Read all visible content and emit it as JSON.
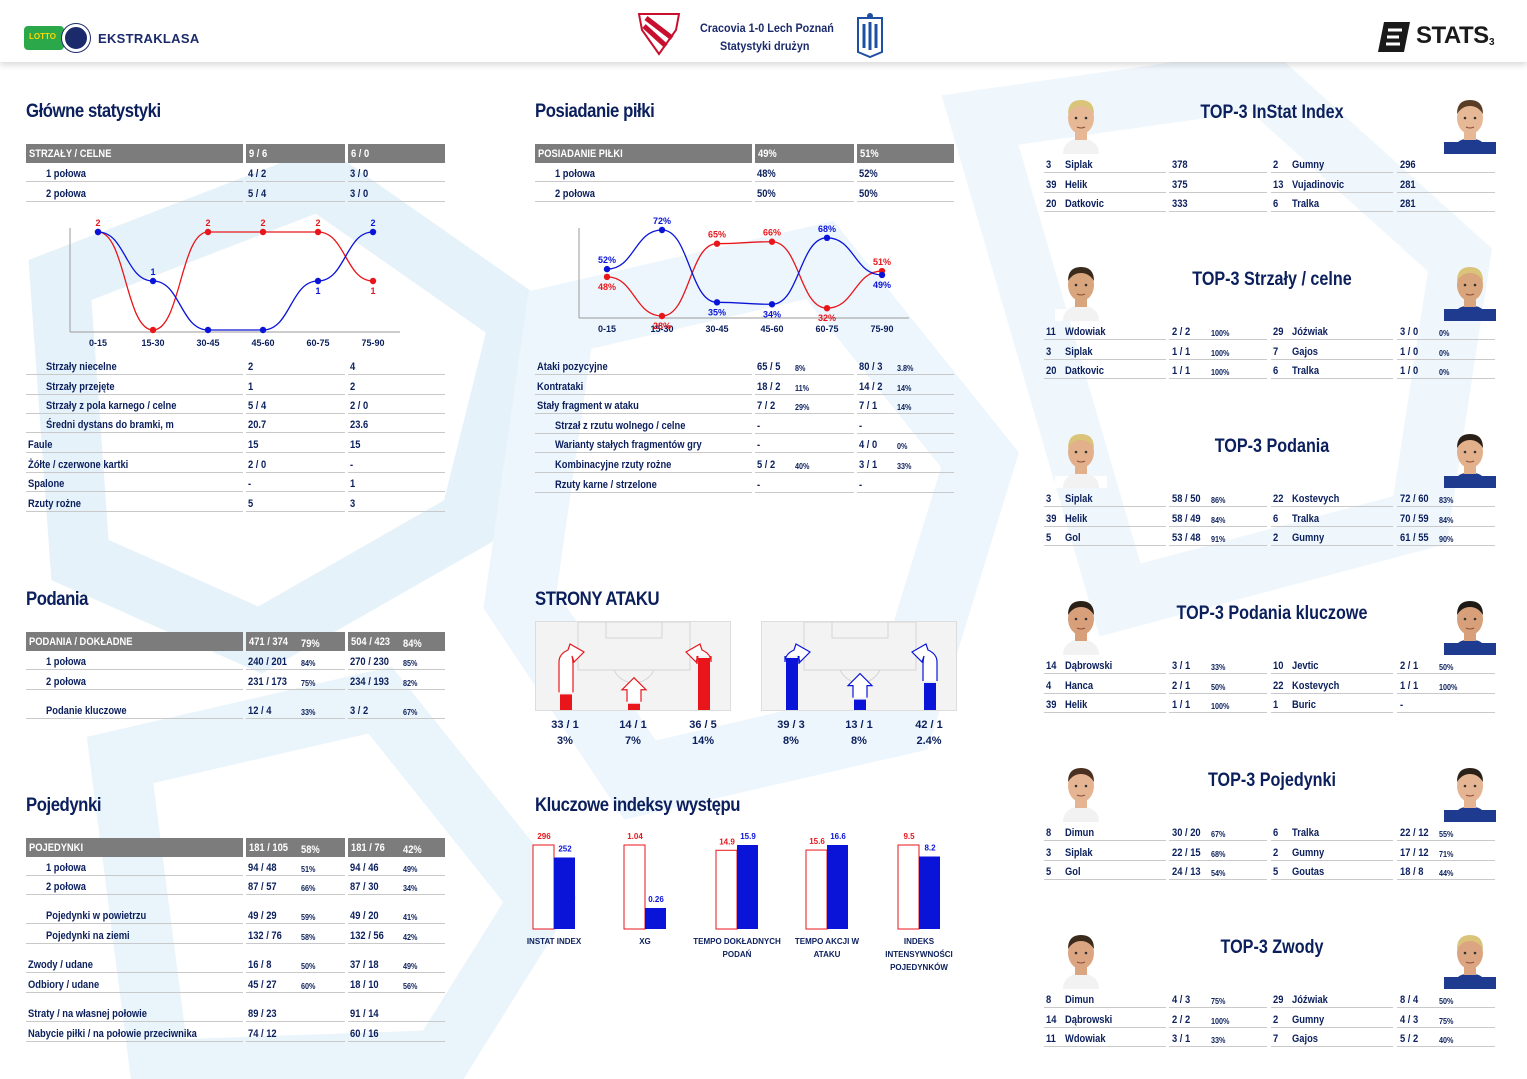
{
  "header": {
    "match": "Cracovia 1-0  Lech Poznań",
    "subtitle": "Statystyki drużyn",
    "league": "EKSTRAKLASA",
    "logo_small": "LOTTO",
    "stats_brand": "STATS",
    "page_number": "3"
  },
  "colors": {
    "home": "#e8161b",
    "away": "#0a14d8",
    "navy": "#0b1f5c",
    "header_gray": "#7c7c7c"
  },
  "main_stats": {
    "title": "Główne statystyki",
    "header": [
      "STRZAŁY / CELNE",
      "9 / 6",
      "6 / 0"
    ],
    "halves": [
      [
        "1 połowa",
        "4 / 2",
        "3 / 0"
      ],
      [
        "2 połowa",
        "5 / 4",
        "3 / 0"
      ]
    ],
    "rows": [
      [
        "Strzały niecelne",
        "2",
        "4"
      ],
      [
        "Strzały przejęte",
        "1",
        "2"
      ],
      [
        "Strzały z pola karnego / celne",
        "5 / 4",
        "2 / 0"
      ],
      [
        "Średni dystans do bramki, m",
        "20.7",
        "23.6"
      ],
      [
        "Faule",
        "15",
        "15"
      ],
      [
        "Żółte / czerwone kartki",
        "2 / 0",
        "-"
      ],
      [
        "Spalone",
        "-",
        "1"
      ],
      [
        "Rzuty rożne",
        "5",
        "3"
      ]
    ]
  },
  "possession": {
    "title": "Posiadanie piłki",
    "header": [
      "POSIADANIE PIŁKI",
      "49%",
      "51%"
    ],
    "halves": [
      [
        "1 połowa",
        "48%",
        "52%"
      ],
      [
        "2 połowa",
        "50%",
        "50%"
      ]
    ],
    "rows": [
      [
        "Ataki pozycyjne",
        "65 / 5",
        "8%",
        "80 / 3",
        "3.8%"
      ],
      [
        "Kontrataki",
        "18 / 2",
        "11%",
        "14 / 2",
        "14%"
      ],
      [
        "Stały fragment w ataku",
        "7 / 2",
        "29%",
        "7 / 1",
        "14%"
      ],
      [
        "Strzał z rzutu wolnego / celne",
        "-",
        "",
        "-",
        ""
      ],
      [
        "Warianty stałych fragmentów gry",
        "-",
        "",
        "4 / 0",
        "0%"
      ],
      [
        "Kombinacyjne rzuty rożne",
        "5 / 2",
        "40%",
        "3 / 1",
        "33%"
      ],
      [
        "Rzuty karne / strzelone",
        "-",
        "",
        "-",
        ""
      ]
    ]
  },
  "chart_data": [
    {
      "type": "line",
      "categories": [
        "0-15",
        "15-30",
        "30-45",
        "45-60",
        "60-75",
        "75-90"
      ],
      "series": [
        {
          "values": [
            2,
            0,
            2,
            2,
            2,
            1
          ],
          "labels": [
            "2",
            "",
            "2",
            "2",
            "2",
            "1"
          ]
        },
        {
          "values": [
            2,
            1,
            0,
            0,
            1,
            2
          ],
          "labels": [
            "",
            "1",
            "",
            "",
            "1",
            "2"
          ]
        }
      ]
    },
    {
      "type": "line",
      "categories": [
        "0-15",
        "15-30",
        "30-45",
        "45-60",
        "60-75",
        "75-90"
      ],
      "series": [
        {
          "values": [
            48,
            28,
            65,
            66,
            32,
            51
          ],
          "labels": [
            "48%",
            "28%",
            "65%",
            "66%",
            "32%",
            "51%"
          ]
        },
        {
          "values": [
            52,
            72,
            35,
            34,
            68,
            49
          ],
          "labels": [
            "52%",
            "72%",
            "35%",
            "34%",
            "68%",
            "49%"
          ]
        }
      ]
    },
    {
      "type": "bar",
      "title": "Kluczowe indeksy występu",
      "categories": [
        "INSTAT INDEX",
        "XG",
        "TEMPO DOKŁADNYCH PODAŃ",
        "TEMPO AKCJI W ATAKU",
        "INDEKS INTENSYWNOŚCI POJEDYNKÓW"
      ],
      "series": [
        {
          "values": [
            296,
            1.04,
            14.9,
            15.6,
            9.5
          ],
          "labels": [
            "296",
            "1.04",
            "14.9",
            "15.6",
            "9.5"
          ]
        },
        {
          "values": [
            252,
            0.26,
            15.9,
            16.6,
            8.2
          ],
          "labels": [
            "252",
            "0.26",
            "15.9",
            "16.6",
            "8.2"
          ]
        }
      ]
    }
  ],
  "passes": {
    "title": "Podania",
    "header": [
      "PODANIA / DOKŁADNE",
      "471 / 374",
      "79%",
      "504 / 423",
      "84%"
    ],
    "rows": [
      [
        "1 połowa",
        "240 / 201",
        "84%",
        "270 / 230",
        "85%"
      ],
      [
        "2 połowa",
        "231 / 173",
        "75%",
        "234 / 193",
        "82%"
      ],
      [
        "Podanie kluczowe",
        "12 / 4",
        "33%",
        "3 / 2",
        "67%"
      ]
    ]
  },
  "duels": {
    "title": "Pojedynki",
    "header": [
      "POJEDYNKI",
      "181 / 105",
      "58%",
      "181 / 76",
      "42%"
    ],
    "rows": [
      [
        "1 połowa",
        "94 / 48",
        "51%",
        "94 / 46",
        "49%"
      ],
      [
        "2 połowa",
        "87 / 57",
        "66%",
        "87 / 30",
        "34%"
      ],
      [
        "Pojedynki w powietrzu",
        "49 / 29",
        "59%",
        "49 / 20",
        "41%"
      ],
      [
        "Pojedynki na ziemi",
        "132 / 76",
        "58%",
        "132 / 56",
        "42%"
      ],
      [
        "Zwody / udane",
        "16 / 8",
        "50%",
        "37 / 18",
        "49%"
      ],
      [
        "Odbiory / udane",
        "45 / 27",
        "60%",
        "18 / 10",
        "56%"
      ],
      [
        "Straty / na własnej połowie",
        "89 / 23",
        "",
        "91 / 14",
        ""
      ],
      [
        "Nabycie piłki / na połowie przeciwnika",
        "74 / 12",
        "",
        "60 / 16",
        ""
      ]
    ]
  },
  "attack_sides": {
    "title": "STRONY ATAKU",
    "home": [
      {
        "value": "33 / 1",
        "pct": "3%",
        "fill": 0.3
      },
      {
        "value": "14 / 1",
        "pct": "7%",
        "fill": 0.12
      },
      {
        "value": "36 / 5",
        "pct": "14%",
        "fill": 1.0
      }
    ],
    "away": [
      {
        "value": "39 / 3",
        "pct": "8%",
        "fill": 1.0
      },
      {
        "value": "13 / 1",
        "pct": "8%",
        "fill": 0.2
      },
      {
        "value": "42 / 1",
        "pct": "2.4%",
        "fill": 0.52
      }
    ]
  },
  "tops": [
    {
      "title": "TOP-3 InStat Index",
      "home": [
        [
          "3",
          "Siplak",
          "378",
          ""
        ],
        [
          "39",
          "Helik",
          "375",
          ""
        ],
        [
          "20",
          "Datkovic",
          "333",
          ""
        ]
      ],
      "away": [
        [
          "2",
          "Gumny",
          "296",
          ""
        ],
        [
          "13",
          "Vujadinovic",
          "281",
          ""
        ],
        [
          "6",
          "Tralka",
          "281",
          ""
        ]
      ]
    },
    {
      "title": "TOP-3 Strzały / celne",
      "home": [
        [
          "11",
          "Wdowiak",
          "2 / 2",
          "100%"
        ],
        [
          "3",
          "Siplak",
          "1 / 1",
          "100%"
        ],
        [
          "20",
          "Datkovic",
          "1 / 1",
          "100%"
        ]
      ],
      "away": [
        [
          "29",
          "Jóźwiak",
          "3 / 0",
          "0%"
        ],
        [
          "7",
          "Gajos",
          "1 / 0",
          "0%"
        ],
        [
          "6",
          "Tralka",
          "1 / 0",
          "0%"
        ]
      ]
    },
    {
      "title": "TOP-3 Podania",
      "home": [
        [
          "3",
          "Siplak",
          "58 / 50",
          "86%"
        ],
        [
          "39",
          "Helik",
          "58 / 49",
          "84%"
        ],
        [
          "5",
          "Gol",
          "53 / 48",
          "91%"
        ]
      ],
      "away": [
        [
          "22",
          "Kostevych",
          "72 / 60",
          "83%"
        ],
        [
          "6",
          "Tralka",
          "70 / 59",
          "84%"
        ],
        [
          "2",
          "Gumny",
          "61 / 55",
          "90%"
        ]
      ]
    },
    {
      "title": "TOP-3 Podania kluczowe",
      "home": [
        [
          "14",
          "Dąbrowski",
          "3 / 1",
          "33%"
        ],
        [
          "4",
          "Hanca",
          "2 / 1",
          "50%"
        ],
        [
          "39",
          "Helik",
          "1 / 1",
          "100%"
        ]
      ],
      "away": [
        [
          "10",
          "Jevtic",
          "2 / 1",
          "50%"
        ],
        [
          "22",
          "Kostevych",
          "1 / 1",
          "100%"
        ],
        [
          "1",
          "Buric",
          "-",
          ""
        ]
      ]
    },
    {
      "title": "TOP-3 Pojedynki",
      "home": [
        [
          "8",
          "Dimun",
          "30 / 20",
          "67%"
        ],
        [
          "3",
          "Siplak",
          "22 / 15",
          "68%"
        ],
        [
          "5",
          "Gol",
          "24 / 13",
          "54%"
        ]
      ],
      "away": [
        [
          "6",
          "Tralka",
          "22 / 12",
          "55%"
        ],
        [
          "2",
          "Gumny",
          "17 / 12",
          "71%"
        ],
        [
          "5",
          "Goutas",
          "18 / 8",
          "44%"
        ]
      ]
    },
    {
      "title": "TOP-3 Zwody",
      "home": [
        [
          "8",
          "Dimun",
          "4 / 3",
          "75%"
        ],
        [
          "14",
          "Dąbrowski",
          "2 / 2",
          "100%"
        ],
        [
          "11",
          "Wdowiak",
          "3 / 1",
          "33%"
        ]
      ],
      "away": [
        [
          "29",
          "Jóźwiak",
          "8 / 4",
          "50%"
        ],
        [
          "2",
          "Gumny",
          "4 / 3",
          "75%"
        ],
        [
          "7",
          "Gajos",
          "5 / 2",
          "40%"
        ]
      ]
    }
  ]
}
